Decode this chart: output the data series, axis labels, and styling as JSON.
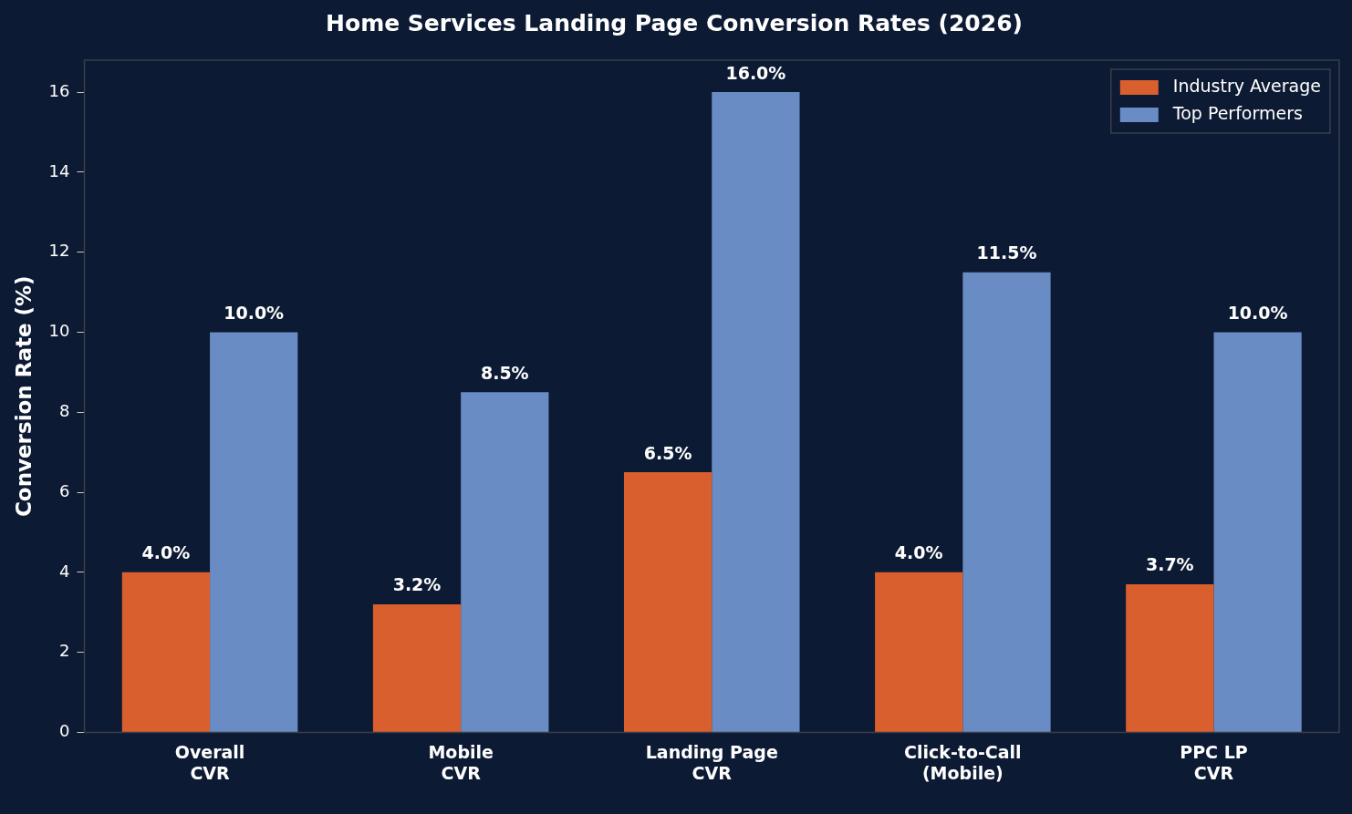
{
  "chart_data": {
    "type": "bar",
    "title": "Home Services Landing Page Conversion Rates (2026)",
    "ylabel": "Conversion Rate (%)",
    "categories": [
      "Overall\nCVR",
      "Mobile\nCVR",
      "Landing Page\nCVR",
      "Click-to-Call\n(Mobile)",
      "PPC LP\nCVR"
    ],
    "series": [
      {
        "name": "Industry Average",
        "color": "#d95f2e",
        "values": [
          4.0,
          3.2,
          6.5,
          4.0,
          3.7
        ],
        "value_labels": [
          "4.0%",
          "3.2%",
          "6.5%",
          "4.0%",
          "3.7%"
        ]
      },
      {
        "name": "Top Performers",
        "color": "#6a8cc4",
        "values": [
          10.0,
          8.5,
          16.0,
          11.5,
          10.0
        ],
        "value_labels": [
          "10.0%",
          "8.5%",
          "16.0%",
          "11.5%",
          "10.0%"
        ]
      }
    ],
    "ylim": [
      0,
      16.8
    ],
    "yticks": [
      0,
      2,
      4,
      6,
      8,
      10,
      12,
      14,
      16
    ],
    "grid": false,
    "legend": "top right"
  }
}
